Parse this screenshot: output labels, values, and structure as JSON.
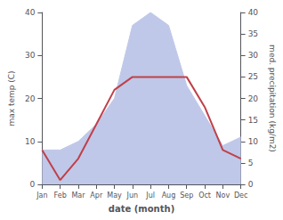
{
  "chart_data": {
    "type": "line",
    "xlabel": "date (month)",
    "ylabel": "max temp (C)",
    "y2label": "med. precipitation (kg/m2)",
    "categories": [
      "Jan",
      "Feb",
      "Mar",
      "Apr",
      "May",
      "Jun",
      "Jul",
      "Aug",
      "Sep",
      "Oct",
      "Nov",
      "Dec"
    ],
    "series": [
      {
        "type": "area",
        "axis": "y2",
        "color": "#bfc8e8",
        "values": [
          8,
          8,
          10,
          14,
          20,
          37,
          40,
          37,
          23,
          16,
          9,
          11
        ]
      },
      {
        "type": "line",
        "color": "#c0404a",
        "values": [
          8,
          1,
          6,
          14,
          22,
          25,
          25,
          25,
          25,
          18,
          8,
          6
        ]
      }
    ],
    "ylim": [
      0,
      40
    ],
    "yticks": [
      0,
      10,
      20,
      30,
      40
    ],
    "y2lim": [
      0,
      40
    ],
    "y2ticks": [
      0,
      5,
      10,
      15,
      20,
      25,
      30,
      35,
      40
    ],
    "grid": false
  }
}
